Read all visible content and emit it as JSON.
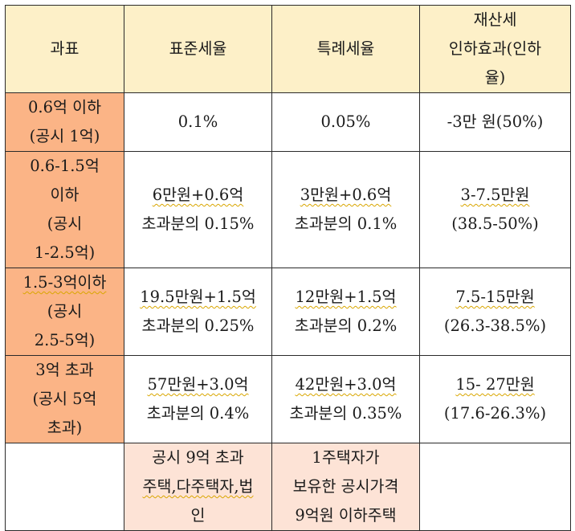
{
  "header": {
    "col1": "과표",
    "col2": "표준세율",
    "col3": "특례세율",
    "col4_lines": [
      "재산세",
      "인하효과(인하",
      "율)"
    ]
  },
  "rows": [
    {
      "bracket": [
        "0.6억 이하",
        "(공시 1억)"
      ],
      "standard": [
        "0.1%"
      ],
      "special": [
        "0.05%"
      ],
      "effect": [
        "-3만 원(50%)"
      ]
    },
    {
      "bracket": [
        "0.6-1.5억",
        "이하",
        "(공시",
        "1-2.5억)"
      ],
      "standard": [
        "6만원+0.6억",
        "초과분의 0.15%"
      ],
      "special": [
        "3만원+0.6억",
        "초과분의 0.1%"
      ],
      "effect": [
        "3-7.5만원",
        "(38.5-50%)"
      ]
    },
    {
      "bracket": [
        "1.5-3억이하",
        "(공시",
        "2.5-5억)"
      ],
      "standard": [
        "19.5만원+1.5억",
        "초과분의 0.25%"
      ],
      "special": [
        "12만원+1.5억",
        "초과분의 0.2%"
      ],
      "effect": [
        "7.5-15만원",
        "(26.3-38.5%)"
      ]
    },
    {
      "bracket": [
        "3억 초과",
        "(공시 5억",
        "초과)"
      ],
      "standard": [
        "57만원+3.0억",
        "초과분의 0.4%"
      ],
      "special": [
        "42만원+3.0억",
        "초과분의 0.35%"
      ],
      "effect": [
        "15- 27만원",
        "(17.6-26.3%)"
      ]
    }
  ],
  "footer": {
    "col1": "",
    "standard": [
      "공시 9억 초과",
      "주택,다주택자,법",
      "인"
    ],
    "special": [
      "1주택자가",
      "보유한 공시가격",
      "9억원 이하주택"
    ],
    "effect": ""
  }
}
